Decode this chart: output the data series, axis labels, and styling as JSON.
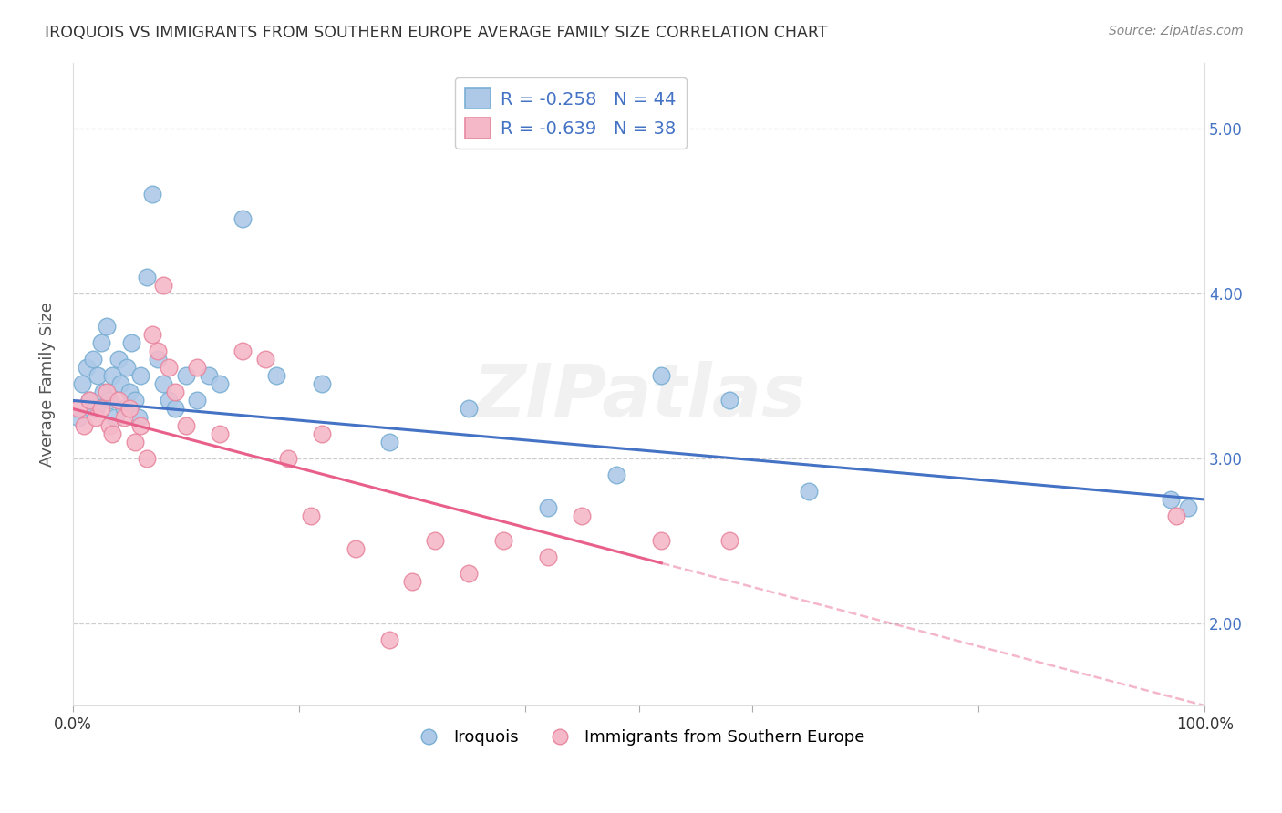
{
  "title": "IROQUOIS VS IMMIGRANTS FROM SOUTHERN EUROPE AVERAGE FAMILY SIZE CORRELATION CHART",
  "source": "Source: ZipAtlas.com",
  "ylabel": "Average Family Size",
  "yticks": [
    2.0,
    3.0,
    4.0,
    5.0
  ],
  "xlim": [
    0.0,
    1.0
  ],
  "ylim": [
    1.5,
    5.4
  ],
  "legend1_label": "R = -0.258   N = 44",
  "legend2_label": "R = -0.639   N = 38",
  "bottom_legend1": "Iroquois",
  "bottom_legend2": "Immigrants from Southern Europe",
  "blue_face": "#aec9e8",
  "blue_edge": "#7aafd4",
  "pink_face": "#f5b8c8",
  "pink_edge": "#e888a0",
  "line_blue": "#4472c4",
  "line_pink": "#e8608a",
  "watermark": "ZIPatlas",
  "iroquois_x": [
    0.005,
    0.008,
    0.012,
    0.015,
    0.018,
    0.02,
    0.022,
    0.025,
    0.027,
    0.03,
    0.032,
    0.035,
    0.037,
    0.04,
    0.042,
    0.045,
    0.048,
    0.05,
    0.052,
    0.055,
    0.058,
    0.06,
    0.065,
    0.07,
    0.075,
    0.08,
    0.085,
    0.09,
    0.1,
    0.11,
    0.12,
    0.13,
    0.15,
    0.18,
    0.22,
    0.28,
    0.35,
    0.42,
    0.48,
    0.52,
    0.58,
    0.65,
    0.97,
    0.985
  ],
  "iroquois_y": [
    3.25,
    3.45,
    3.55,
    3.35,
    3.6,
    3.3,
    3.5,
    3.7,
    3.4,
    3.8,
    3.35,
    3.5,
    3.25,
    3.6,
    3.45,
    3.3,
    3.55,
    3.4,
    3.7,
    3.35,
    3.25,
    3.5,
    4.1,
    4.6,
    3.6,
    3.45,
    3.35,
    3.3,
    3.5,
    3.35,
    3.5,
    3.45,
    4.45,
    3.5,
    3.45,
    3.1,
    3.3,
    2.7,
    2.9,
    3.5,
    3.35,
    2.8,
    2.75,
    2.7
  ],
  "southern_europe_x": [
    0.005,
    0.01,
    0.015,
    0.02,
    0.025,
    0.03,
    0.032,
    0.035,
    0.04,
    0.045,
    0.05,
    0.055,
    0.06,
    0.065,
    0.07,
    0.075,
    0.08,
    0.085,
    0.09,
    0.1,
    0.11,
    0.13,
    0.15,
    0.17,
    0.19,
    0.21,
    0.22,
    0.25,
    0.28,
    0.3,
    0.32,
    0.35,
    0.38,
    0.42,
    0.45,
    0.52,
    0.58,
    0.975
  ],
  "southern_europe_y": [
    3.3,
    3.2,
    3.35,
    3.25,
    3.3,
    3.4,
    3.2,
    3.15,
    3.35,
    3.25,
    3.3,
    3.1,
    3.2,
    3.0,
    3.75,
    3.65,
    4.05,
    3.55,
    3.4,
    3.2,
    3.55,
    3.15,
    3.65,
    3.6,
    3.0,
    2.65,
    3.15,
    2.45,
    1.9,
    2.25,
    2.5,
    2.3,
    2.5,
    2.4,
    2.65,
    2.5,
    2.5,
    2.65
  ]
}
